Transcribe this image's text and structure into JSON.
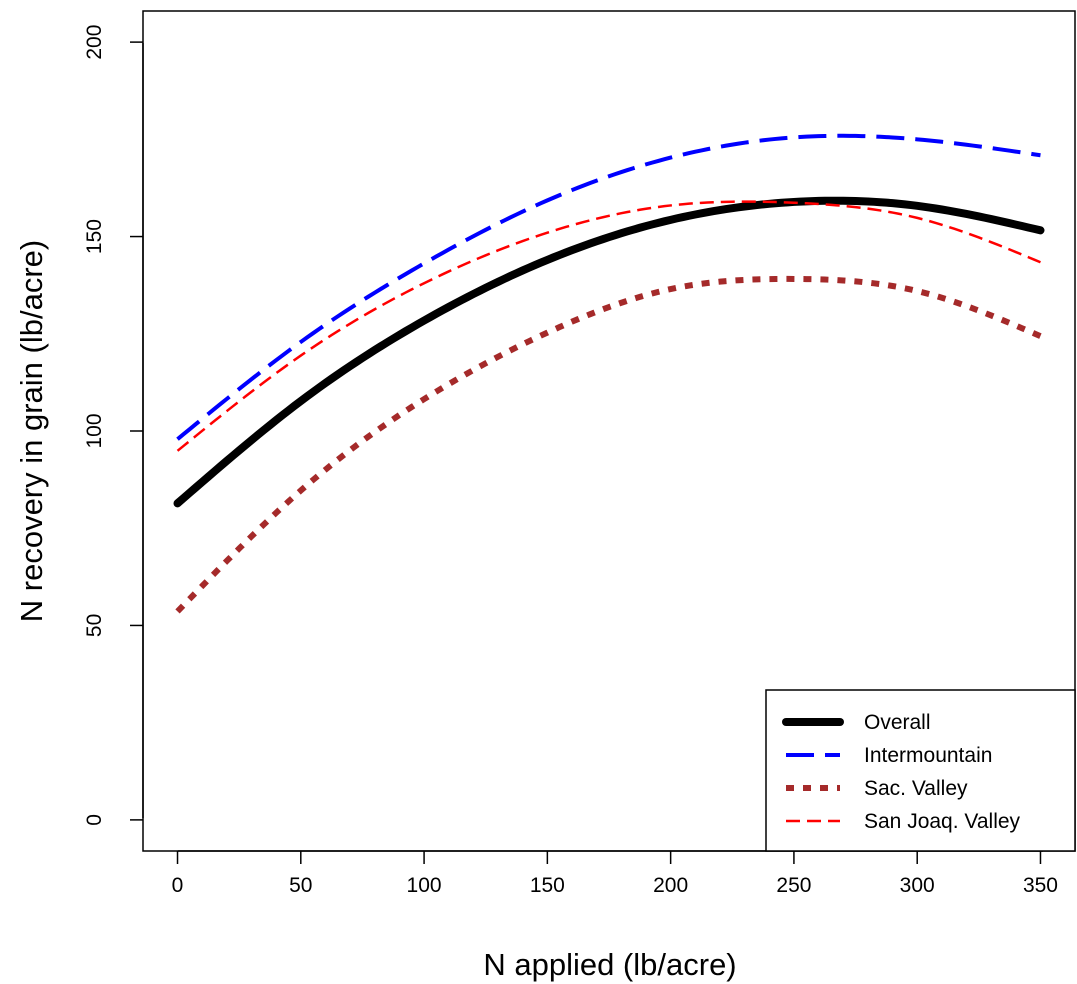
{
  "chart_data": {
    "type": "line",
    "xlabel": "N applied (lb/acre)",
    "ylabel": "N recovery in grain (lb/acre)",
    "xlim": [
      -14,
      364
    ],
    "ylim": [
      -8,
      208
    ],
    "xticks": [
      "0",
      "50",
      "100",
      "150",
      "200",
      "250",
      "300",
      "350"
    ],
    "yticks": [
      "0",
      "50",
      "100",
      "150",
      "200"
    ],
    "legend_position": "bottom-right",
    "x": [
      0,
      50,
      100,
      150,
      200,
      250,
      300,
      350
    ],
    "series": [
      {
        "name": "Overall",
        "color": "#000000",
        "style": "solid-thick",
        "values": [
          81.4,
          107.7,
          128.4,
          144.0,
          154.3,
          158.9,
          157.9,
          151.6
        ]
      },
      {
        "name": "Intermountain",
        "color": "#0000ff",
        "style": "long-dash",
        "values": [
          97.9,
          122.9,
          143.1,
          159.3,
          170.3,
          175.5,
          175.0,
          170.9
        ]
      },
      {
        "name": "Sac. Valley",
        "color": "#a52a2a",
        "style": "dotted-thick",
        "values": [
          53.6,
          84.7,
          108.2,
          125.3,
          136.5,
          139.1,
          136.0,
          124.4
        ]
      },
      {
        "name": "San Joaq. Valley",
        "color": "#ff0000",
        "style": "dashed",
        "values": [
          94.9,
          119.4,
          138.0,
          151.0,
          158.0,
          158.7,
          154.8,
          143.4
        ]
      }
    ]
  }
}
